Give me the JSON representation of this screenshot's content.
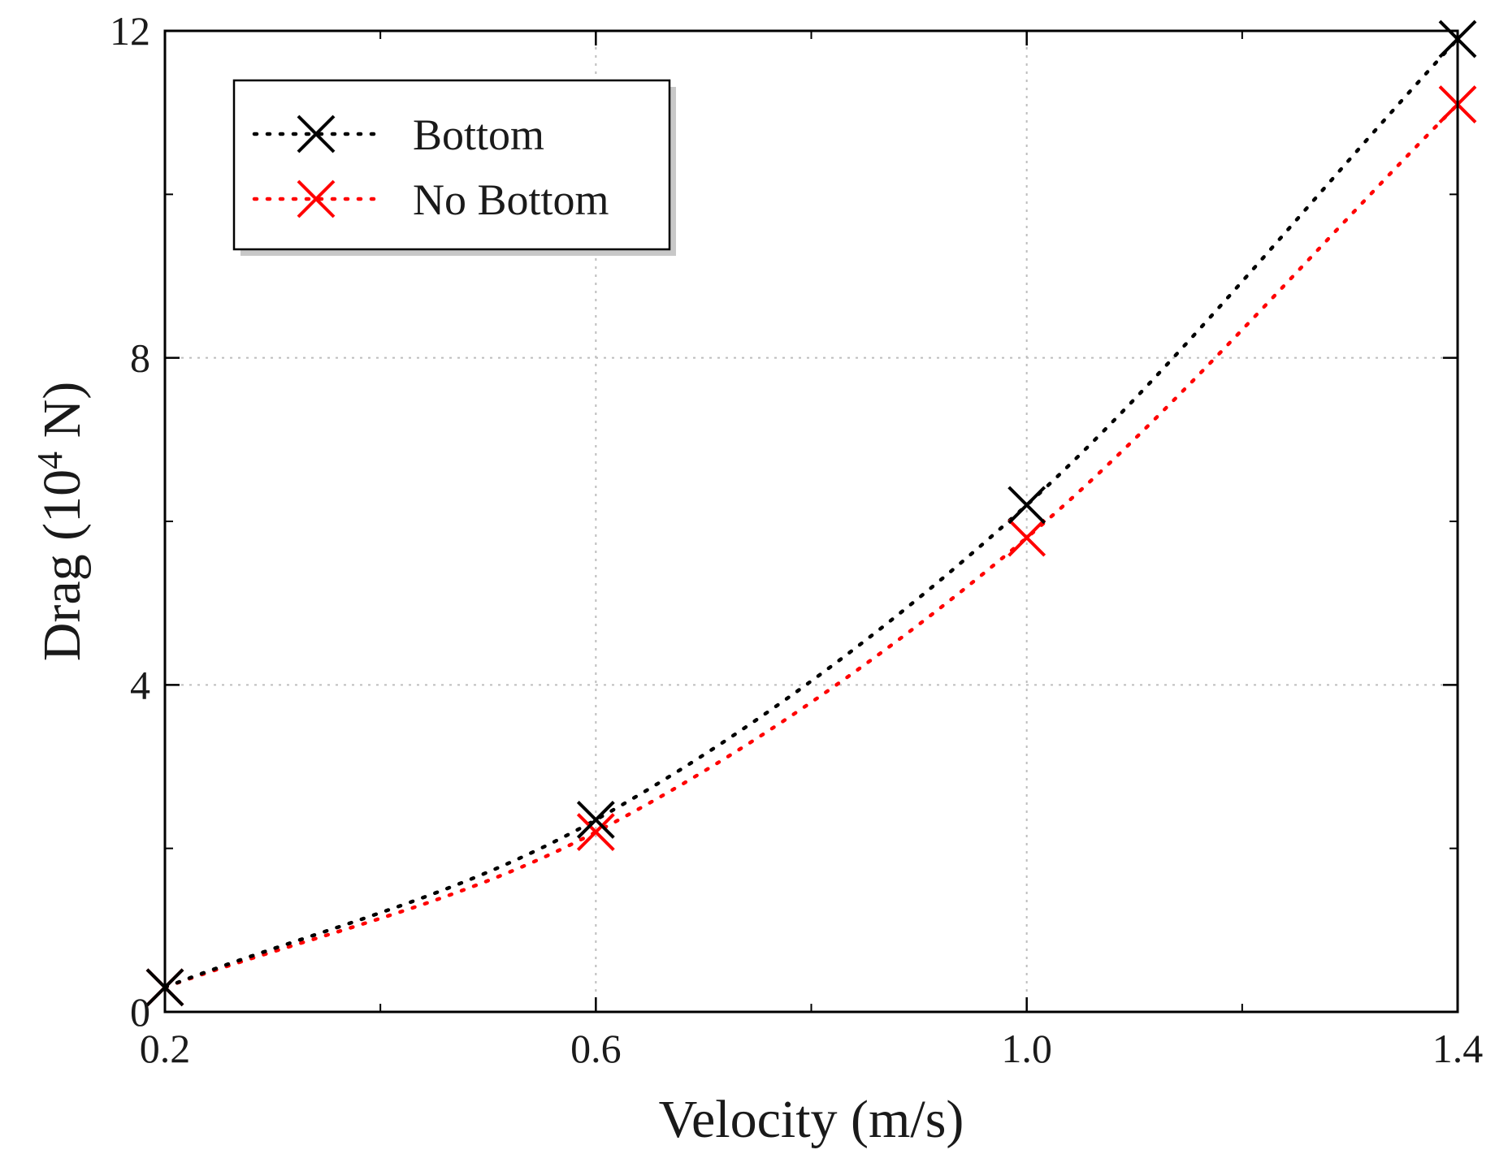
{
  "chart_data": {
    "type": "line",
    "title": "",
    "xlabel": "Velocity (m/s)",
    "ylabel_main": "Drag (10",
    "ylabel_sup": "4",
    "ylabel_tail": " N)",
    "xlim": [
      0.2,
      1.4
    ],
    "ylim": [
      0,
      12
    ],
    "x_ticks": [
      0.2,
      0.6,
      1.0,
      1.4
    ],
    "x_tick_labels": [
      "0.2",
      "0.6",
      "1.0",
      "1.4"
    ],
    "x_minor_ticks": [
      0.4,
      0.8,
      1.2
    ],
    "y_ticks": [
      0,
      4,
      8,
      12
    ],
    "y_tick_labels": [
      "0",
      "4",
      "8",
      "12"
    ],
    "y_minor_ticks": [
      2,
      6,
      10
    ],
    "grid": true,
    "legend_position": "top-left",
    "series": [
      {
        "name": "Bottom",
        "color": "#000000",
        "marker": "x",
        "line_style": "dotted",
        "x": [
          0.2,
          0.6,
          1.0,
          1.4
        ],
        "y": [
          0.3,
          2.35,
          6.2,
          11.9
        ]
      },
      {
        "name": "No Bottom",
        "color": "#ff0000",
        "marker": "x",
        "line_style": "dotted",
        "x": [
          0.2,
          0.6,
          1.0,
          1.4
        ],
        "y": [
          0.3,
          2.2,
          5.8,
          11.1
        ]
      }
    ]
  }
}
